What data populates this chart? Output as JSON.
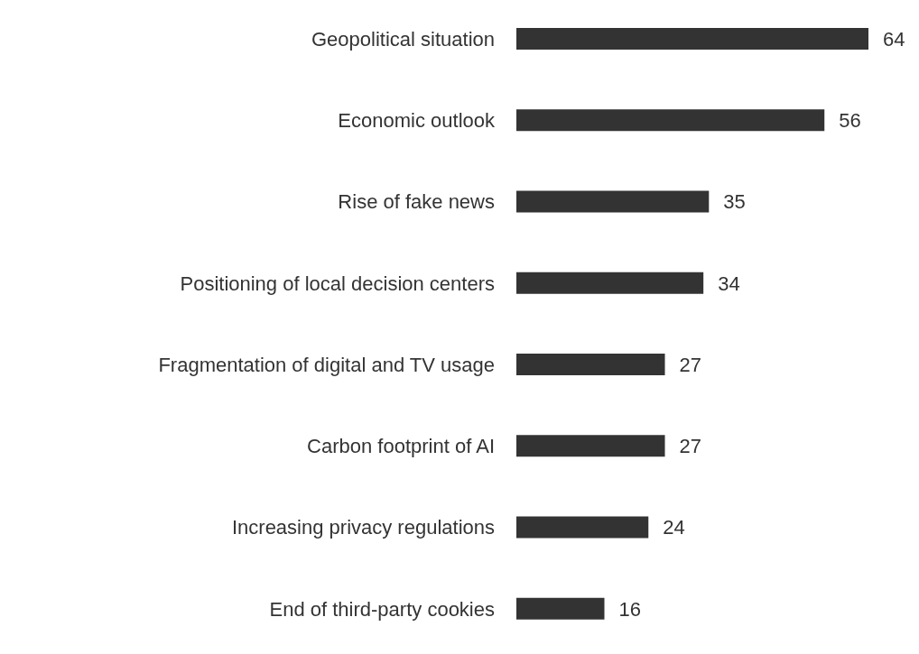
{
  "chart_data": {
    "type": "bar",
    "orientation": "horizontal",
    "categories": [
      "Geopolitical situation",
      "Economic outlook",
      "Rise of fake news",
      "Positioning of local decision centers",
      "Fragmentation of digital and TV usage",
      "Carbon footprint of AI",
      "Increasing privacy regulations",
      "End of third-party cookies"
    ],
    "values": [
      64,
      56,
      35,
      34,
      27,
      27,
      24,
      16
    ],
    "color": "#333333",
    "data_labels": true,
    "grid": false,
    "legend": false
  }
}
